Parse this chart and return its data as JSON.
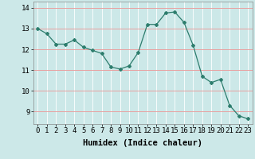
{
  "x": [
    0,
    1,
    2,
    3,
    4,
    5,
    6,
    7,
    8,
    9,
    10,
    11,
    12,
    13,
    14,
    15,
    16,
    17,
    18,
    19,
    20,
    21,
    22,
    23
  ],
  "y": [
    13.0,
    12.75,
    12.25,
    12.25,
    12.45,
    12.1,
    11.95,
    11.8,
    11.15,
    11.05,
    11.2,
    11.85,
    13.2,
    13.2,
    13.75,
    13.8,
    13.3,
    12.2,
    10.7,
    10.4,
    10.55,
    9.3,
    8.8,
    8.65
  ],
  "line_color": "#2d7d6d",
  "marker": "D",
  "marker_size": 2.0,
  "bg_color": "#cce8e8",
  "grid_white_color": "#ffffff",
  "grid_red_color": "#e8a0a0",
  "xlabel": "Humidex (Indice chaleur)",
  "ylim": [
    8.4,
    14.3
  ],
  "xlim": [
    -0.5,
    23.5
  ],
  "yticks": [
    9,
    10,
    11,
    12,
    13,
    14
  ],
  "xticks": [
    0,
    1,
    2,
    3,
    4,
    5,
    6,
    7,
    8,
    9,
    10,
    11,
    12,
    13,
    14,
    15,
    16,
    17,
    18,
    19,
    20,
    21,
    22,
    23
  ],
  "xlabel_fontsize": 7.5,
  "tick_fontsize": 6.5,
  "spine_color": "#888888"
}
